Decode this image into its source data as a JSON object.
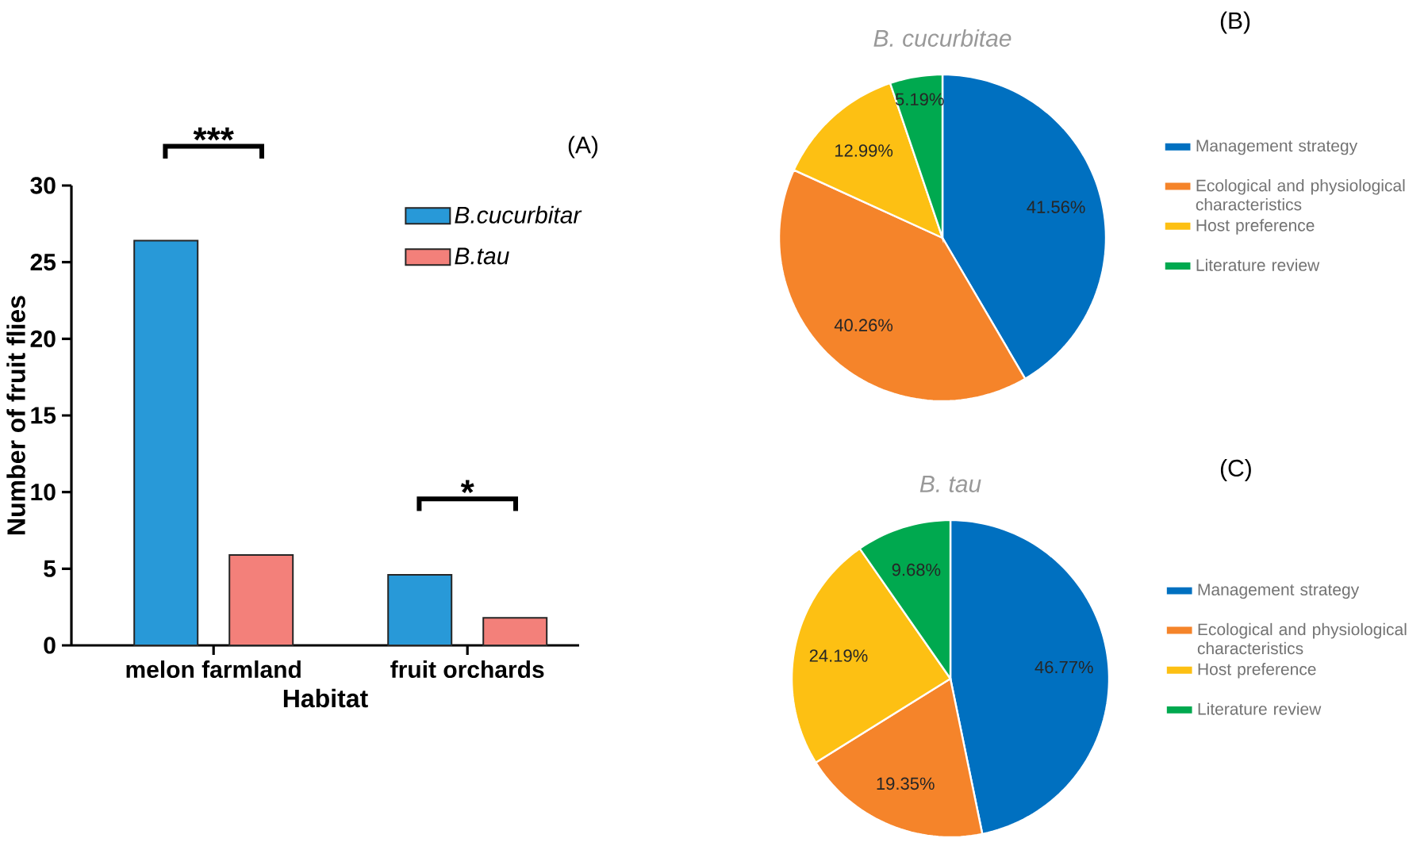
{
  "chart_data": [
    {
      "type": "bar",
      "xlabel": "Habitat",
      "ylabel": "Number of fruit flies",
      "categories": [
        "melon farmland",
        "fruit orchards"
      ],
      "series": [
        {
          "name": "B.cucurbitar",
          "color": "#2899d8",
          "values": [
            26.4,
            4.6
          ]
        },
        {
          "name": "B.tau",
          "color": "#f3807a",
          "values": [
            5.9,
            1.8
          ]
        }
      ],
      "ylim": [
        0,
        30
      ],
      "yticks": [
        0,
        5,
        10,
        15,
        20,
        25,
        30
      ],
      "legend": "top right",
      "annotations": [
        "***",
        "*",
        "(A)"
      ]
    },
    {
      "type": "pie",
      "title": "B. cucurbitae",
      "categories": [
        "Management strategy",
        "Ecological and physiological characteristics",
        "Host preference",
        "Literature review"
      ],
      "values": [
        41.56,
        40.26,
        12.99,
        5.19
      ],
      "colors": [
        "#0070c0",
        "#f5842a",
        "#fdc013",
        "#00a94f"
      ],
      "value_labels": [
        "41.56%",
        "40.26%",
        "12.99%",
        "5.19%"
      ],
      "legend": "right",
      "annotations": [
        "(B)"
      ]
    },
    {
      "type": "pie",
      "title": "B. tau",
      "categories": [
        "Management strategy",
        "Ecological and physiological characteristics",
        "Host preference",
        "Literature review"
      ],
      "values": [
        46.77,
        19.35,
        24.19,
        9.68
      ],
      "colors": [
        "#0070c0",
        "#f5842a",
        "#fdc013",
        "#00a94f"
      ],
      "value_labels": [
        "46.77%",
        "19.35%",
        "24.19%",
        "9.68%"
      ],
      "legend": "right",
      "annotations": [
        "(C)"
      ]
    }
  ]
}
